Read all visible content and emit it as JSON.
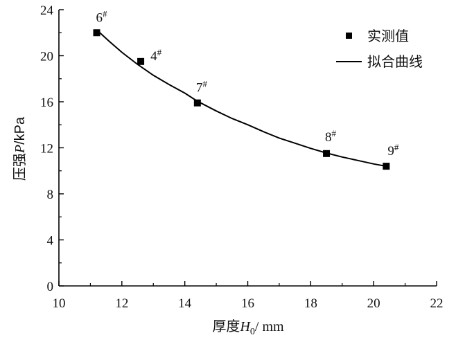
{
  "chart_data": {
    "type": "scatter",
    "xlabel": {
      "prefix": "厚度",
      "var": "H",
      "sub": "0",
      "unit": "/ mm"
    },
    "ylabel": {
      "prefix": "压强",
      "var": "P",
      "unit": "/kPa"
    },
    "xlim": [
      10,
      22
    ],
    "ylim": [
      0,
      24
    ],
    "xticks": [
      10,
      12,
      14,
      16,
      18,
      20,
      22
    ],
    "yticks": [
      0,
      4,
      8,
      12,
      16,
      20,
      24
    ],
    "series": [
      {
        "name": "实测值",
        "kind": "points",
        "marker": "square",
        "points": [
          {
            "x": 11.2,
            "y": 22.0,
            "label": "6",
            "sup": "#"
          },
          {
            "x": 12.6,
            "y": 19.5,
            "label": "4",
            "sup": "#"
          },
          {
            "x": 14.4,
            "y": 15.9,
            "label": "7",
            "sup": "#"
          },
          {
            "x": 18.5,
            "y": 11.5,
            "label": "8",
            "sup": "#"
          },
          {
            "x": 20.4,
            "y": 10.4,
            "label": "9",
            "sup": "#"
          }
        ]
      },
      {
        "name": "拟合曲线",
        "kind": "line",
        "curve": [
          [
            11.2,
            22.25
          ],
          [
            11.6,
            21.25
          ],
          [
            12.0,
            20.3
          ],
          [
            12.5,
            19.25
          ],
          [
            13.0,
            18.3
          ],
          [
            13.5,
            17.5
          ],
          [
            14.0,
            16.75
          ],
          [
            14.4,
            16.05
          ],
          [
            15.0,
            15.2
          ],
          [
            15.5,
            14.55
          ],
          [
            16.0,
            14.0
          ],
          [
            16.5,
            13.4
          ],
          [
            17.0,
            12.85
          ],
          [
            17.5,
            12.4
          ],
          [
            18.0,
            11.95
          ],
          [
            18.5,
            11.55
          ],
          [
            19.0,
            11.2
          ],
          [
            19.5,
            10.9
          ],
          [
            20.0,
            10.6
          ],
          [
            20.4,
            10.4
          ]
        ]
      }
    ],
    "legend_position": "top-right",
    "grid": false
  }
}
